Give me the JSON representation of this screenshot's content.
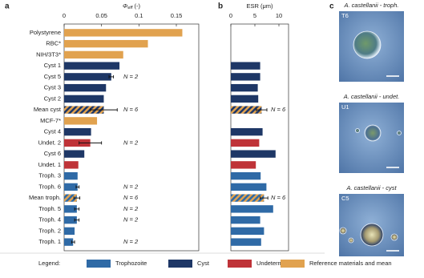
{
  "panel_labels": [
    "a",
    "b",
    "c"
  ],
  "chart_data": [
    {
      "type": "hbar",
      "x_label": {
        "symbol": "Φ",
        "subscript": "eff",
        "unit": "(-)"
      },
      "categories": [
        "Polystyrene",
        "RBC*",
        "NIH/3T3*",
        "Cyst 1",
        "Cyst 5",
        "Cyst 3",
        "Cyst 2",
        "Mean cyst",
        "MCF-7*",
        "Cyst 4",
        "Undet. 2",
        "Cyst 6",
        "Undet. 1",
        "Troph. 3",
        "Troph. 6",
        "Mean troph.",
        "Troph. 5",
        "Troph. 4",
        "Troph. 2",
        "Troph. 1"
      ],
      "values": [
        0.158,
        0.112,
        0.079,
        0.074,
        0.063,
        0.056,
        0.053,
        0.053,
        0.044,
        0.036,
        0.035,
        0.027,
        0.019,
        0.018,
        0.018,
        0.017,
        0.017,
        0.017,
        0.014,
        0.012
      ],
      "errors": [
        null,
        null,
        null,
        null,
        0.003,
        null,
        null,
        0.018,
        null,
        null,
        0.015,
        null,
        null,
        null,
        0.002,
        0.004,
        0.003,
        0.003,
        null,
        0.002
      ],
      "groups": [
        [
          "Reference materials and mean"
        ],
        [
          "Reference materials and mean"
        ],
        [
          "Reference materials and mean"
        ],
        [
          "Cyst"
        ],
        [
          "Cyst"
        ],
        [
          "Cyst"
        ],
        [
          "Cyst"
        ],
        [
          "Reference materials and mean",
          "Cyst"
        ],
        [
          "Reference materials and mean"
        ],
        [
          "Cyst"
        ],
        [
          "Undetermined"
        ],
        [
          "Cyst"
        ],
        [
          "Undetermined"
        ],
        [
          "Trophozoite"
        ],
        [
          "Trophozoite"
        ],
        [
          "Reference materials and mean",
          "Trophozoite"
        ],
        [
          "Trophozoite"
        ],
        [
          "Trophozoite"
        ],
        [
          "Trophozoite"
        ],
        [
          "Trophozoite"
        ]
      ],
      "n_labels": [
        null,
        null,
        null,
        null,
        "N = 2",
        null,
        null,
        "N = 6",
        null,
        null,
        "N = 2",
        null,
        null,
        null,
        "N = 2",
        "N = 6",
        "N = 2",
        "N = 2",
        null,
        "N = 2"
      ],
      "xlim": [
        0,
        0.18
      ],
      "xticks": [
        0,
        0.05,
        0.1,
        0.15
      ]
    },
    {
      "type": "hbar",
      "x_label": "ESR (μm)",
      "values": [
        null,
        null,
        null,
        6.1,
        6.1,
        5.6,
        5.7,
        6.4,
        null,
        6.6,
        5.9,
        9.3,
        5.2,
        6.2,
        7.4,
        6.9,
        8.8,
        6.1,
        6.9,
        6.3
      ],
      "errors": [
        null,
        null,
        null,
        null,
        null,
        null,
        null,
        1.1,
        null,
        null,
        null,
        null,
        null,
        null,
        null,
        0.8,
        null,
        null,
        null,
        null
      ],
      "groups": [
        [
          "Reference materials and mean"
        ],
        [
          "Reference materials and mean"
        ],
        [
          "Reference materials and mean"
        ],
        [
          "Cyst"
        ],
        [
          "Cyst"
        ],
        [
          "Cyst"
        ],
        [
          "Cyst"
        ],
        [
          "Reference materials and mean",
          "Cyst"
        ],
        [
          "Reference materials and mean"
        ],
        [
          "Cyst"
        ],
        [
          "Undetermined"
        ],
        [
          "Cyst"
        ],
        [
          "Undetermined"
        ],
        [
          "Trophozoite"
        ],
        [
          "Trophozoite"
        ],
        [
          "Reference materials and mean",
          "Trophozoite"
        ],
        [
          "Trophozoite"
        ],
        [
          "Trophozoite"
        ],
        [
          "Trophozoite"
        ],
        [
          "Trophozoite"
        ]
      ],
      "n_labels": [
        null,
        null,
        null,
        null,
        null,
        null,
        null,
        "N = 6",
        null,
        null,
        null,
        null,
        null,
        null,
        null,
        "N = 6",
        null,
        null,
        null,
        null
      ],
      "xlim": [
        0,
        12
      ],
      "xticks": [
        0,
        5,
        10
      ]
    }
  ],
  "images": [
    {
      "title": "A. castellanii - troph.",
      "code": "T6"
    },
    {
      "title": "A. castellanii - undet.",
      "code": "U1"
    },
    {
      "title": "A. castellanii - cyst",
      "code": "C5"
    }
  ],
  "legend": {
    "title": "Legend:",
    "items": [
      {
        "name": "Trophozoite",
        "color": "#2f6aa6"
      },
      {
        "name": "Cyst",
        "color": "#1e3766"
      },
      {
        "name": "Undetermined",
        "color": "#bf3338"
      },
      {
        "name": "Reference materials and mean",
        "color": "#e1a24f"
      }
    ]
  }
}
